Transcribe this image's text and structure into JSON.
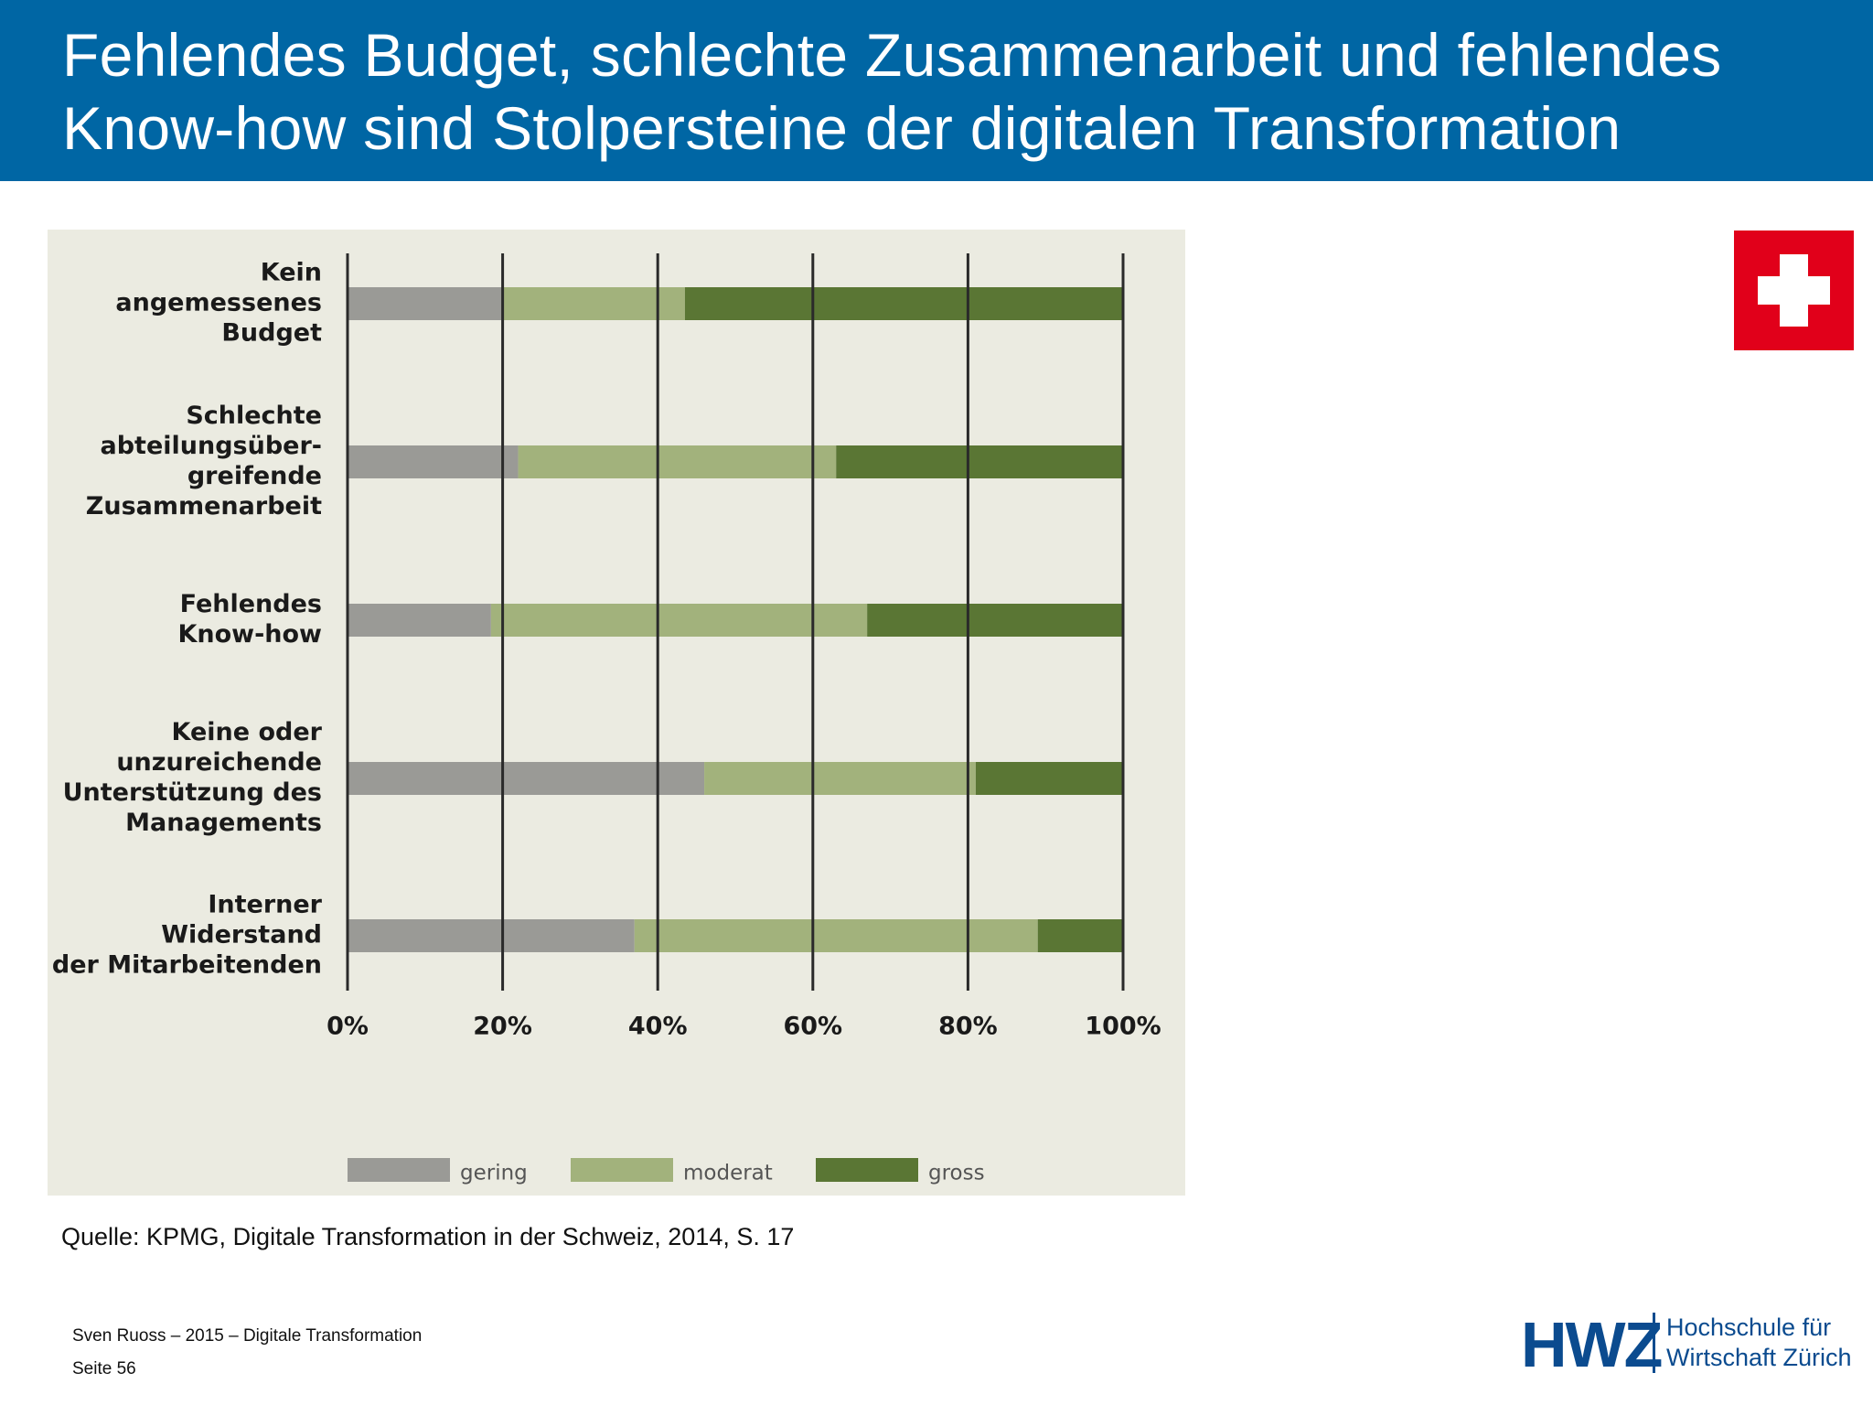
{
  "header": {
    "title_line1": "Fehlendes Budget, schlechte Zusammenarbeit und fehlendes",
    "title_line2": "Know-how sind Stolpersteine der digitalen Transformation"
  },
  "chart_data": {
    "type": "bar",
    "orientation": "horizontal",
    "stacked": true,
    "categories": [
      [
        "Kein",
        "angemessenes",
        "Budget"
      ],
      [
        "Schlechte",
        "abteilungsüber-",
        "greifende",
        "Zusammenarbeit"
      ],
      [
        "Fehlendes",
        "Know-how"
      ],
      [
        "Keine oder",
        "unzureichende",
        "Unterstützung des",
        "Managements"
      ],
      [
        "Interner",
        "Widerstand",
        "der Mitarbeitenden"
      ]
    ],
    "series": [
      {
        "name": "gering",
        "color": "#9a9a96",
        "values": [
          20,
          22,
          18.5,
          46,
          37
        ]
      },
      {
        "name": "moderat",
        "color": "#a2b27c",
        "values": [
          23.5,
          41,
          48.5,
          35,
          52
        ]
      },
      {
        "name": "gross",
        "color": "#5a7634",
        "values": [
          56.5,
          37,
          33,
          19,
          11
        ]
      }
    ],
    "xlim": [
      0,
      100
    ],
    "xticks": [
      "0%",
      "20%",
      "40%",
      "60%",
      "80%",
      "100%"
    ],
    "grid": true,
    "legend_position": "bottom"
  },
  "source": "Quelle: KPMG, Digitale Transformation in der Schweiz, 2014, S. 17",
  "footer": {
    "author": "Sven Ruoss – 2015 – Digitale Transformation",
    "page": "Seite 56"
  },
  "logo": {
    "mark": "HWZ",
    "name_line1": "Hochschule für",
    "name_line2": "Wirtschaft Zürich"
  },
  "flag": {
    "icon": "swiss-flag-icon",
    "color": "#e1001a"
  }
}
